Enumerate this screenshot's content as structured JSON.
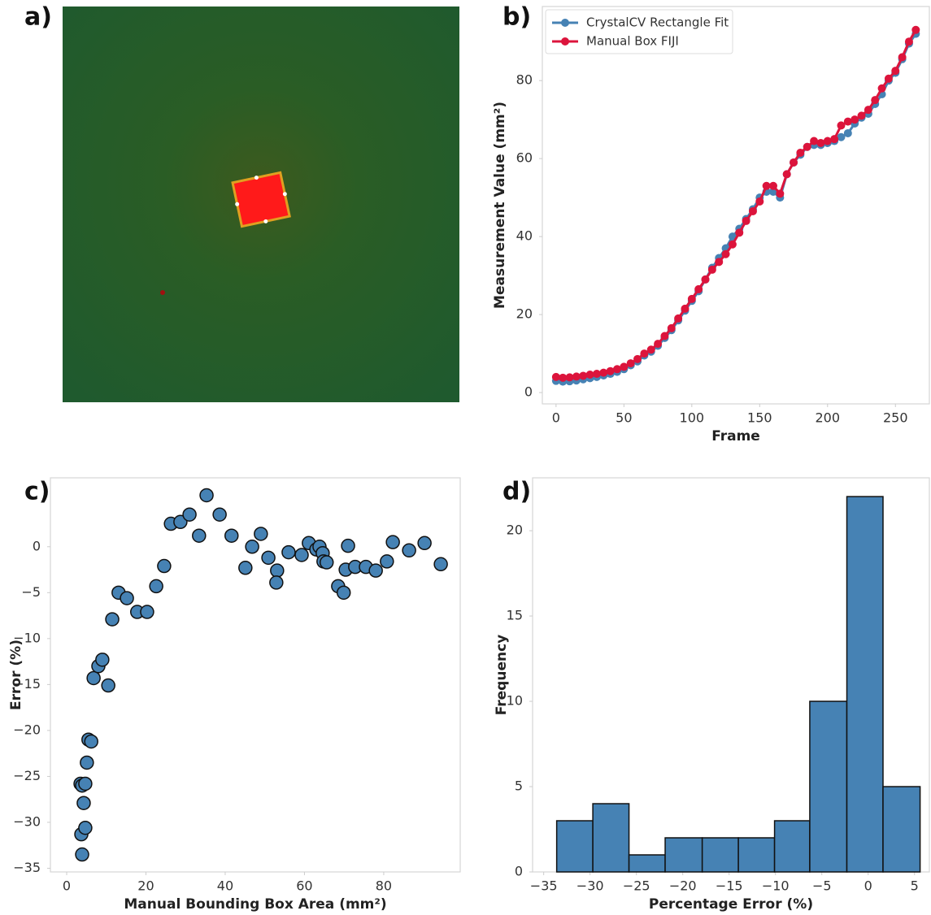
{
  "panels": [
    "a)",
    "b)",
    "c)",
    "d)"
  ],
  "chart_data": [
    {
      "type": "line",
      "xlabel": "Frame",
      "ylabel": "Measurement Value (mm²)",
      "x": [
        0,
        5,
        10,
        15,
        20,
        25,
        30,
        35,
        40,
        45,
        50,
        55,
        60,
        65,
        70,
        75,
        80,
        85,
        90,
        95,
        100,
        105,
        110,
        115,
        120,
        125,
        130,
        135,
        140,
        145,
        150,
        155,
        160,
        165,
        170,
        175,
        180,
        185,
        190,
        195,
        200,
        205,
        210,
        215,
        220,
        225,
        230,
        235,
        240,
        245,
        250,
        255,
        260,
        265
      ],
      "series": [
        {
          "name": "CrystalCV Rectangle Fit",
          "color": "#4682b4",
          "values": [
            3,
            2.8,
            2.9,
            3.1,
            3.4,
            3.7,
            4,
            4.4,
            4.8,
            5.3,
            6,
            7,
            8,
            9.5,
            10.5,
            12,
            14,
            16,
            18.5,
            21,
            23.5,
            26,
            29,
            32,
            34.5,
            37,
            40,
            42,
            44.5,
            47,
            50,
            51.5,
            51.5,
            50,
            56,
            59,
            61,
            63,
            63.5,
            63.5,
            64,
            64.5,
            65.5,
            66.5,
            69,
            70.5,
            71.5,
            74,
            76.5,
            80,
            82,
            85.5,
            89.5,
            92
          ]
        },
        {
          "name": "Manual Box FIJI",
          "color": "#dc143c",
          "values": [
            4,
            3.8,
            3.9,
            4.1,
            4.3,
            4.6,
            4.8,
            5.1,
            5.5,
            6,
            6.6,
            7.5,
            8.6,
            10,
            11,
            12.5,
            14.5,
            16.5,
            19,
            21.5,
            24,
            26.5,
            29,
            31.5,
            33.5,
            35.5,
            38,
            41,
            44,
            46.5,
            49,
            53,
            53,
            51,
            56,
            59,
            61.5,
            63,
            64.5,
            64,
            64.5,
            65,
            68.5,
            69.5,
            70,
            71,
            72.5,
            75,
            78,
            80.5,
            82.5,
            86,
            90,
            93
          ]
        }
      ],
      "markers": true,
      "legend": "upper left",
      "xlim": [
        -10.1,
        275
      ],
      "ylim": [
        -2.9,
        99
      ],
      "xticks": [
        0,
        50,
        100,
        150,
        200,
        250
      ],
      "yticks": [
        0,
        20,
        40,
        60,
        80
      ]
    },
    {
      "type": "scatter",
      "xlabel": "Manual Bounding Box Area (mm²)",
      "ylabel": "Error (%)",
      "color": "#4682b4",
      "x": [
        3.9,
        3.7,
        4.7,
        4.3,
        3.5,
        3.9,
        4.7,
        5.1,
        5.5,
        6.2,
        10.5,
        6.8,
        8.0,
        9.0,
        11.5,
        13.1,
        15.2,
        17.8,
        20.3,
        22.6,
        24.6,
        26.3,
        28.7,
        31.0,
        33.4,
        35.3,
        38.6,
        41.6,
        45.1,
        46.8,
        49.0,
        50.9,
        53.1,
        52.9,
        56.0,
        59.3,
        61.1,
        63.0,
        63.8,
        64.6,
        64.8,
        65.6,
        68.5,
        69.9,
        70.4,
        71.0,
        72.8,
        75.5,
        78.0,
        80.8,
        82.3,
        86.4,
        90.3,
        94.4
      ],
      "values": [
        -33.5,
        -31.3,
        -30.6,
        -27.9,
        -25.8,
        -26.0,
        -25.8,
        -23.5,
        -21.0,
        -21.2,
        -15.1,
        -14.3,
        -13.0,
        -12.3,
        -7.9,
        -5.0,
        -5.6,
        -7.1,
        -7.1,
        -4.3,
        -2.1,
        2.5,
        2.7,
        3.5,
        1.2,
        5.6,
        3.5,
        1.2,
        -2.3,
        0.0,
        1.4,
        -1.2,
        -2.6,
        -3.9,
        -0.6,
        -0.9,
        0.4,
        -0.3,
        0.0,
        -0.7,
        -1.6,
        -1.7,
        -4.3,
        -5.0,
        -2.5,
        0.1,
        -2.2,
        -2.2,
        -2.6,
        -1.6,
        0.5,
        -0.4,
        0.4,
        -1.9
      ],
      "xlim": [
        -4.1,
        99.3
      ],
      "ylim": [
        -35.4,
        7.5
      ],
      "xticks": [
        0,
        20,
        40,
        60,
        80
      ],
      "yticks": [
        0,
        {
          "value": -5,
          "label": "−5"
        },
        {
          "value": -10,
          "label": "−10"
        },
        {
          "value": -15,
          "label": "−15"
        },
        {
          "value": -20,
          "label": "−20"
        },
        {
          "value": -25,
          "label": "−25"
        },
        {
          "value": -30,
          "label": "−30"
        },
        {
          "value": -35,
          "label": "−35"
        }
      ]
    },
    {
      "type": "histogram",
      "xlabel": "Percentage Error (%)",
      "ylabel": "Frequency",
      "color": "#4682b4",
      "bins": [
        -33.6,
        -29.7,
        -25.8,
        -21.9,
        -17.9,
        -14.0,
        -10.1,
        -6.3,
        -2.3,
        1.6,
        5.6
      ],
      "values": [
        3,
        4,
        1,
        2,
        2,
        2,
        3,
        10,
        22,
        5
      ],
      "xlim": [
        -36.2,
        6.6
      ],
      "ylim": [
        0,
        23.1
      ],
      "xticks": [
        {
          "value": -35,
          "label": "−35"
        },
        {
          "value": -30,
          "label": "−30"
        },
        {
          "value": -25,
          "label": "−25"
        },
        {
          "value": -20,
          "label": "−20"
        },
        {
          "value": -15,
          "label": "−15"
        },
        {
          "value": -10,
          "label": "−10"
        },
        {
          "value": -5,
          "label": "−5"
        },
        0,
        5
      ],
      "yticks": [
        0,
        5,
        10,
        15,
        20
      ]
    }
  ]
}
